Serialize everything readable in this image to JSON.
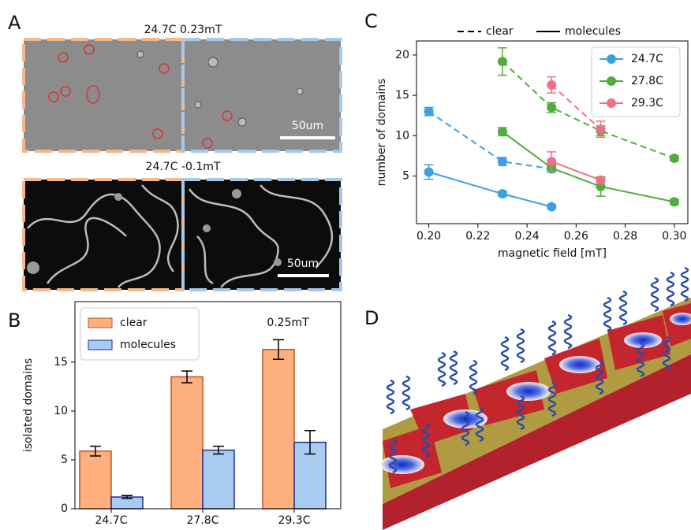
{
  "panel_labels": [
    "A",
    "B",
    "C",
    "D"
  ],
  "panel_a": {
    "images": [
      {
        "title": "24.7C 0.23mT",
        "scale_bar": "50um"
      },
      {
        "title": "24.7C -0.1mT",
        "scale_bar": "50um"
      }
    ]
  },
  "chart_data": [
    {
      "type": "bar",
      "categories": [
        "24.7C",
        "27.8C",
        "29.3C"
      ],
      "y_label": "isolated domains",
      "annotation": "0.25mT",
      "ylim": [
        0,
        21.2
      ],
      "yticks": [
        0,
        5,
        10,
        15
      ],
      "legend": "upper left",
      "series": [
        {
          "name": "clear",
          "color": "#fdb07e",
          "edge_color": "#c4522a",
          "values": [
            5.9,
            13.5,
            16.3
          ],
          "errors": [
            0.5,
            0.6,
            1.0
          ]
        },
        {
          "name": "molecules",
          "color": "#a9cbef",
          "edge_color": "#1f2f8a",
          "values": [
            1.2,
            6.0,
            6.8
          ],
          "errors": [
            0.15,
            0.4,
            1.2
          ]
        }
      ]
    },
    {
      "type": "line",
      "x_label": "magnetic field [mT]",
      "y_label": "number of domains",
      "xlim": [
        0.195,
        0.3055
      ],
      "xticks": [
        {
          "value": 0.2,
          "label": "0.20"
        },
        {
          "value": 0.22,
          "label": "0.22"
        },
        {
          "value": 0.24,
          "label": "0.24"
        },
        {
          "value": 0.26,
          "label": "0.26"
        },
        {
          "value": 0.28,
          "label": "0.28"
        },
        {
          "value": 0.3,
          "label": "0.30"
        }
      ],
      "ylim": [
        -0.9,
        21.75
      ],
      "yticks": [
        5,
        10,
        15,
        20
      ],
      "legend": "upper right",
      "line_styles": [
        {
          "label": "clear",
          "style": "dashed"
        },
        {
          "label": "molecules",
          "style": "solid"
        }
      ],
      "series": [
        {
          "name": "24.7C",
          "color": "#3fa0e0",
          "x": [
            0.2,
            0.23,
            0.25
          ],
          "dashed": [
            13.0,
            6.8,
            5.9
          ],
          "dashed_errors": [
            0.5,
            0.5,
            0.4
          ],
          "solid": [
            5.5,
            2.8,
            1.2
          ],
          "solid_errors": [
            0.9,
            0.3,
            0.2
          ]
        },
        {
          "name": "27.8C",
          "color": "#4fae3b",
          "x": [
            0.23,
            0.25,
            0.27,
            0.3
          ],
          "dashed": [
            19.2,
            13.5,
            10.6,
            7.2
          ],
          "dashed_errors": [
            1.7,
            0.6,
            0.6,
            0.3
          ],
          "solid": [
            10.5,
            6.0,
            3.7,
            1.8
          ],
          "solid_errors": [
            0.5,
            0.4,
            1.2,
            0.3
          ]
        },
        {
          "name": "29.3C",
          "color": "#f0708a",
          "x": [
            0.25,
            0.27
          ],
          "dashed": [
            16.3,
            10.8
          ],
          "dashed_errors": [
            1.0,
            1.0
          ],
          "solid": [
            6.8,
            4.5
          ],
          "solid_errors": [
            1.2,
            0.3
          ]
        }
      ]
    }
  ]
}
